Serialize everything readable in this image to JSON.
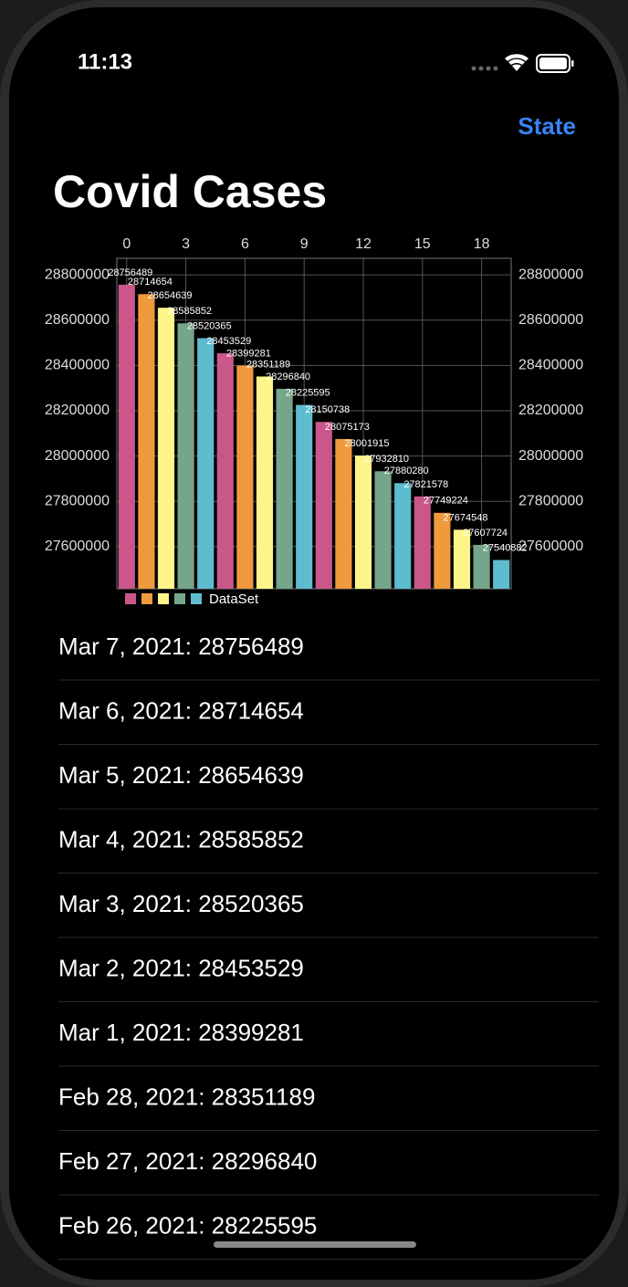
{
  "status_bar": {
    "time": "11:13"
  },
  "nav": {
    "button": "State",
    "title": "Covid Cases"
  },
  "chart_data": {
    "type": "bar",
    "values": [
      28756489,
      28714654,
      28654639,
      28585852,
      28520365,
      28453529,
      28399281,
      28351189,
      28296840,
      28225595,
      28150738,
      28075173,
      28001915,
      27932810,
      27880280,
      27821578,
      27749224,
      27674548,
      27607724,
      27540882
    ],
    "colors": [
      "#c9578a",
      "#ef9a3c",
      "#fef58a",
      "#75a58a",
      "#5ebccf"
    ],
    "legend": "DataSet",
    "xlim": [
      -0.5,
      19.5
    ],
    "xticks": [
      0,
      3,
      6,
      9,
      12,
      15,
      18
    ],
    "ylim": [
      27414000,
      28873000
    ],
    "yticks": [
      27600000,
      27800000,
      28000000,
      28200000,
      28400000,
      28600000,
      28800000
    ],
    "grid": true
  },
  "list": [
    "Mar 7, 2021: 28756489",
    "Mar 6, 2021: 28714654",
    "Mar 5, 2021: 28654639",
    "Mar 4, 2021: 28585852",
    "Mar 3, 2021: 28520365",
    "Mar 2, 2021: 28453529",
    "Mar 1, 2021: 28399281",
    "Feb 28, 2021: 28351189",
    "Feb 27, 2021: 28296840",
    "Feb 26, 2021: 28225595"
  ]
}
